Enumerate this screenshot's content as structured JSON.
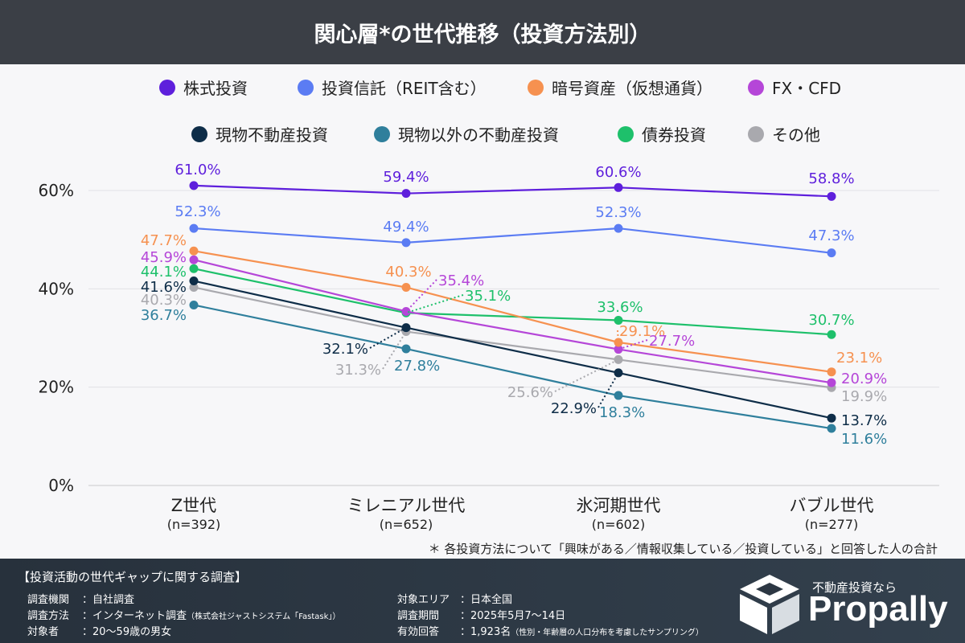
{
  "title": "関心層*の世代推移（投資方法別）",
  "note": "＊ 各投資方法について「興味がある／情報収集している／投資している」と回答した人の合計",
  "chart_data": {
    "type": "line",
    "title": "関心層*の世代推移（投資方法別）",
    "categories": [
      "Z世代",
      "ミレニアル世代",
      "氷河期世代",
      "バブル世代"
    ],
    "category_sub": [
      "(n=392)",
      "(n=652)",
      "(n=602)",
      "(n=277)"
    ],
    "ylim": [
      0,
      60
    ],
    "yticks": [
      "0%",
      "20%",
      "40%",
      "60%"
    ],
    "grid": true,
    "legend_position": "top",
    "series": [
      {
        "name": "株式投資",
        "color": "#5e1fdc",
        "values": [
          61.0,
          59.4,
          60.6,
          58.8
        ],
        "labels": [
          "61.0%",
          "59.4%",
          "60.6%",
          "58.8%"
        ]
      },
      {
        "name": "投資信託（REIT含む）",
        "color": "#5b7cf3",
        "values": [
          52.3,
          49.4,
          52.3,
          47.3
        ],
        "labels": [
          "52.3%",
          "49.4%",
          "52.3%",
          "47.3%"
        ]
      },
      {
        "name": "暗号資産（仮想通貨）",
        "color": "#f69150",
        "values": [
          47.7,
          40.3,
          29.1,
          23.1
        ],
        "labels": [
          "47.7%",
          "40.3%",
          "29.1%",
          "23.1%"
        ]
      },
      {
        "name": "FX・CFD",
        "color": "#b546d8",
        "values": [
          45.9,
          35.4,
          27.7,
          20.9
        ],
        "labels": [
          "45.9%",
          "35.4%",
          "27.7%",
          "20.9%"
        ]
      },
      {
        "name": "現物不動産投資",
        "color": "#0e2d48",
        "values": [
          41.6,
          32.1,
          22.9,
          13.7
        ],
        "labels": [
          "41.6%",
          "32.1%",
          "22.9%",
          "13.7%"
        ]
      },
      {
        "name": "現物以外の不動産投資",
        "color": "#2f7f9c",
        "values": [
          36.7,
          27.8,
          18.3,
          11.6
        ],
        "labels": [
          "36.7%",
          "27.8%",
          "18.3%",
          "11.6%"
        ]
      },
      {
        "name": "債券投資",
        "color": "#1ec06b",
        "values": [
          44.1,
          35.1,
          33.6,
          30.7
        ],
        "labels": [
          "44.1%",
          "35.1%",
          "33.6%",
          "30.7%"
        ]
      },
      {
        "name": "その他",
        "color": "#a9a9ae",
        "values": [
          40.3,
          31.3,
          25.6,
          19.9
        ],
        "labels": [
          "40.3%",
          "31.3%",
          "25.6%",
          "19.9%"
        ]
      }
    ]
  },
  "footer": {
    "title": "【投資活動の世代ギャップに関する調査】",
    "rows": [
      {
        "k": "調査機関",
        "v": "：自社調査",
        "s": ""
      },
      {
        "k": "調査方法",
        "v": "：インターネット調査",
        "s": "（株式会社ジャストシステム「Fastask」）"
      },
      {
        "k": "対象者",
        "v": "：20〜59歳の男女",
        "s": ""
      },
      {
        "k": "対象エリア",
        "v": "：日本全国",
        "s": ""
      },
      {
        "k": "調査期間",
        "v": "：2025年5月7〜14日",
        "s": ""
      },
      {
        "k": "有効回答",
        "v": "：1,923名",
        "s": "（性別・年齢層の人口分布を考慮したサンプリング）"
      }
    ],
    "brand_tag": "不動産投資なら",
    "brand": "Propally"
  }
}
